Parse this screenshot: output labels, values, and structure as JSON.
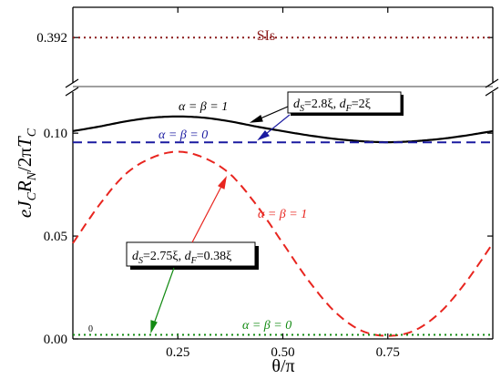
{
  "chart_data": {
    "type": "line",
    "xlabel": "θ/π",
    "ylabel": "eJ_C R_N /2π T_C",
    "ylabel_parts": {
      "e": "e",
      "J": "J",
      "C1": "C",
      "R": "R",
      "N": "N",
      "mid": "/2π",
      "T": "T",
      "C2": "C"
    },
    "x_range": [
      0,
      1
    ],
    "upper_ylim": [
      0.38,
      0.4
    ],
    "lower_ylim": [
      0,
      0.12
    ],
    "x_ticks": [
      {
        "v": 0.25,
        "label": "0.25"
      },
      {
        "v": 0.5,
        "label": "0.50"
      },
      {
        "v": 0.75,
        "label": "0.75"
      }
    ],
    "y_ticks_lower": [
      {
        "v": 0.0,
        "label": "0.00"
      },
      {
        "v": 0.05,
        "label": "0.05"
      },
      {
        "v": 0.1,
        "label": "0.10"
      }
    ],
    "y_ticks_upper": [
      {
        "v": 0.392,
        "label": "0.392"
      }
    ],
    "series": [
      {
        "name": "SIs",
        "axis": "upper",
        "style": "dotted",
        "color": "#8b1a1a",
        "x": [
          0,
          1
        ],
        "y": [
          0.392,
          0.392
        ]
      },
      {
        "name": "α = β = 1",
        "axis": "lower",
        "style": "solid",
        "color": "#000000",
        "x": [
          0,
          0.0625,
          0.125,
          0.1875,
          0.25,
          0.3125,
          0.375,
          0.4375,
          0.5,
          0.5625,
          0.625,
          0.6875,
          0.75,
          0.8125,
          0.875,
          0.9375,
          1.0
        ],
        "y": [
          0.101,
          0.1032,
          0.1057,
          0.1075,
          0.1081,
          0.1075,
          0.1057,
          0.1032,
          0.101,
          0.0989,
          0.0972,
          0.0961,
          0.0956,
          0.0961,
          0.0972,
          0.0989,
          0.101
        ]
      },
      {
        "name": "α = β = 0",
        "axis": "lower",
        "style": "dashed",
        "color": "#1a1aa0",
        "x": [
          0,
          1
        ],
        "y": [
          0.0955,
          0.0955
        ]
      },
      {
        "name": "α = β = 1",
        "axis": "lower",
        "style": "dashed",
        "color": "#e8251f",
        "x": [
          0,
          0.0625,
          0.125,
          0.1875,
          0.25,
          0.3125,
          0.375,
          0.4375,
          0.5,
          0.5625,
          0.625,
          0.6875,
          0.75,
          0.8125,
          0.875,
          0.9375,
          1.0
        ],
        "y": [
          0.0465,
          0.065,
          0.08,
          0.088,
          0.091,
          0.088,
          0.08,
          0.065,
          0.0465,
          0.028,
          0.013,
          0.004,
          0.0015,
          0.004,
          0.013,
          0.028,
          0.0465
        ]
      },
      {
        "name": "α = β = 0",
        "axis": "lower",
        "style": "dotted",
        "color": "#128a12",
        "x": [
          0,
          1
        ],
        "y": [
          0.002,
          0.002
        ]
      }
    ],
    "annotations": {
      "sis_label": "SIs",
      "black_label": "α = β = 1",
      "blue_label": "α = β = 0",
      "red_label": "α = β = 1",
      "green_label": "α = β = 0",
      "zero_mark": "0",
      "box1": {
        "pre": "d",
        "sub1": "S",
        "mid": "=2.8ξ, ",
        "pre2": "d",
        "sub2": "F",
        "post": "=2ξ"
      },
      "box2": {
        "pre": "d",
        "sub1": "S",
        "mid": "=2.75ξ, ",
        "pre2": "d",
        "sub2": "F",
        "post": "=0.38ξ"
      }
    },
    "grid": false,
    "legend": "none"
  }
}
